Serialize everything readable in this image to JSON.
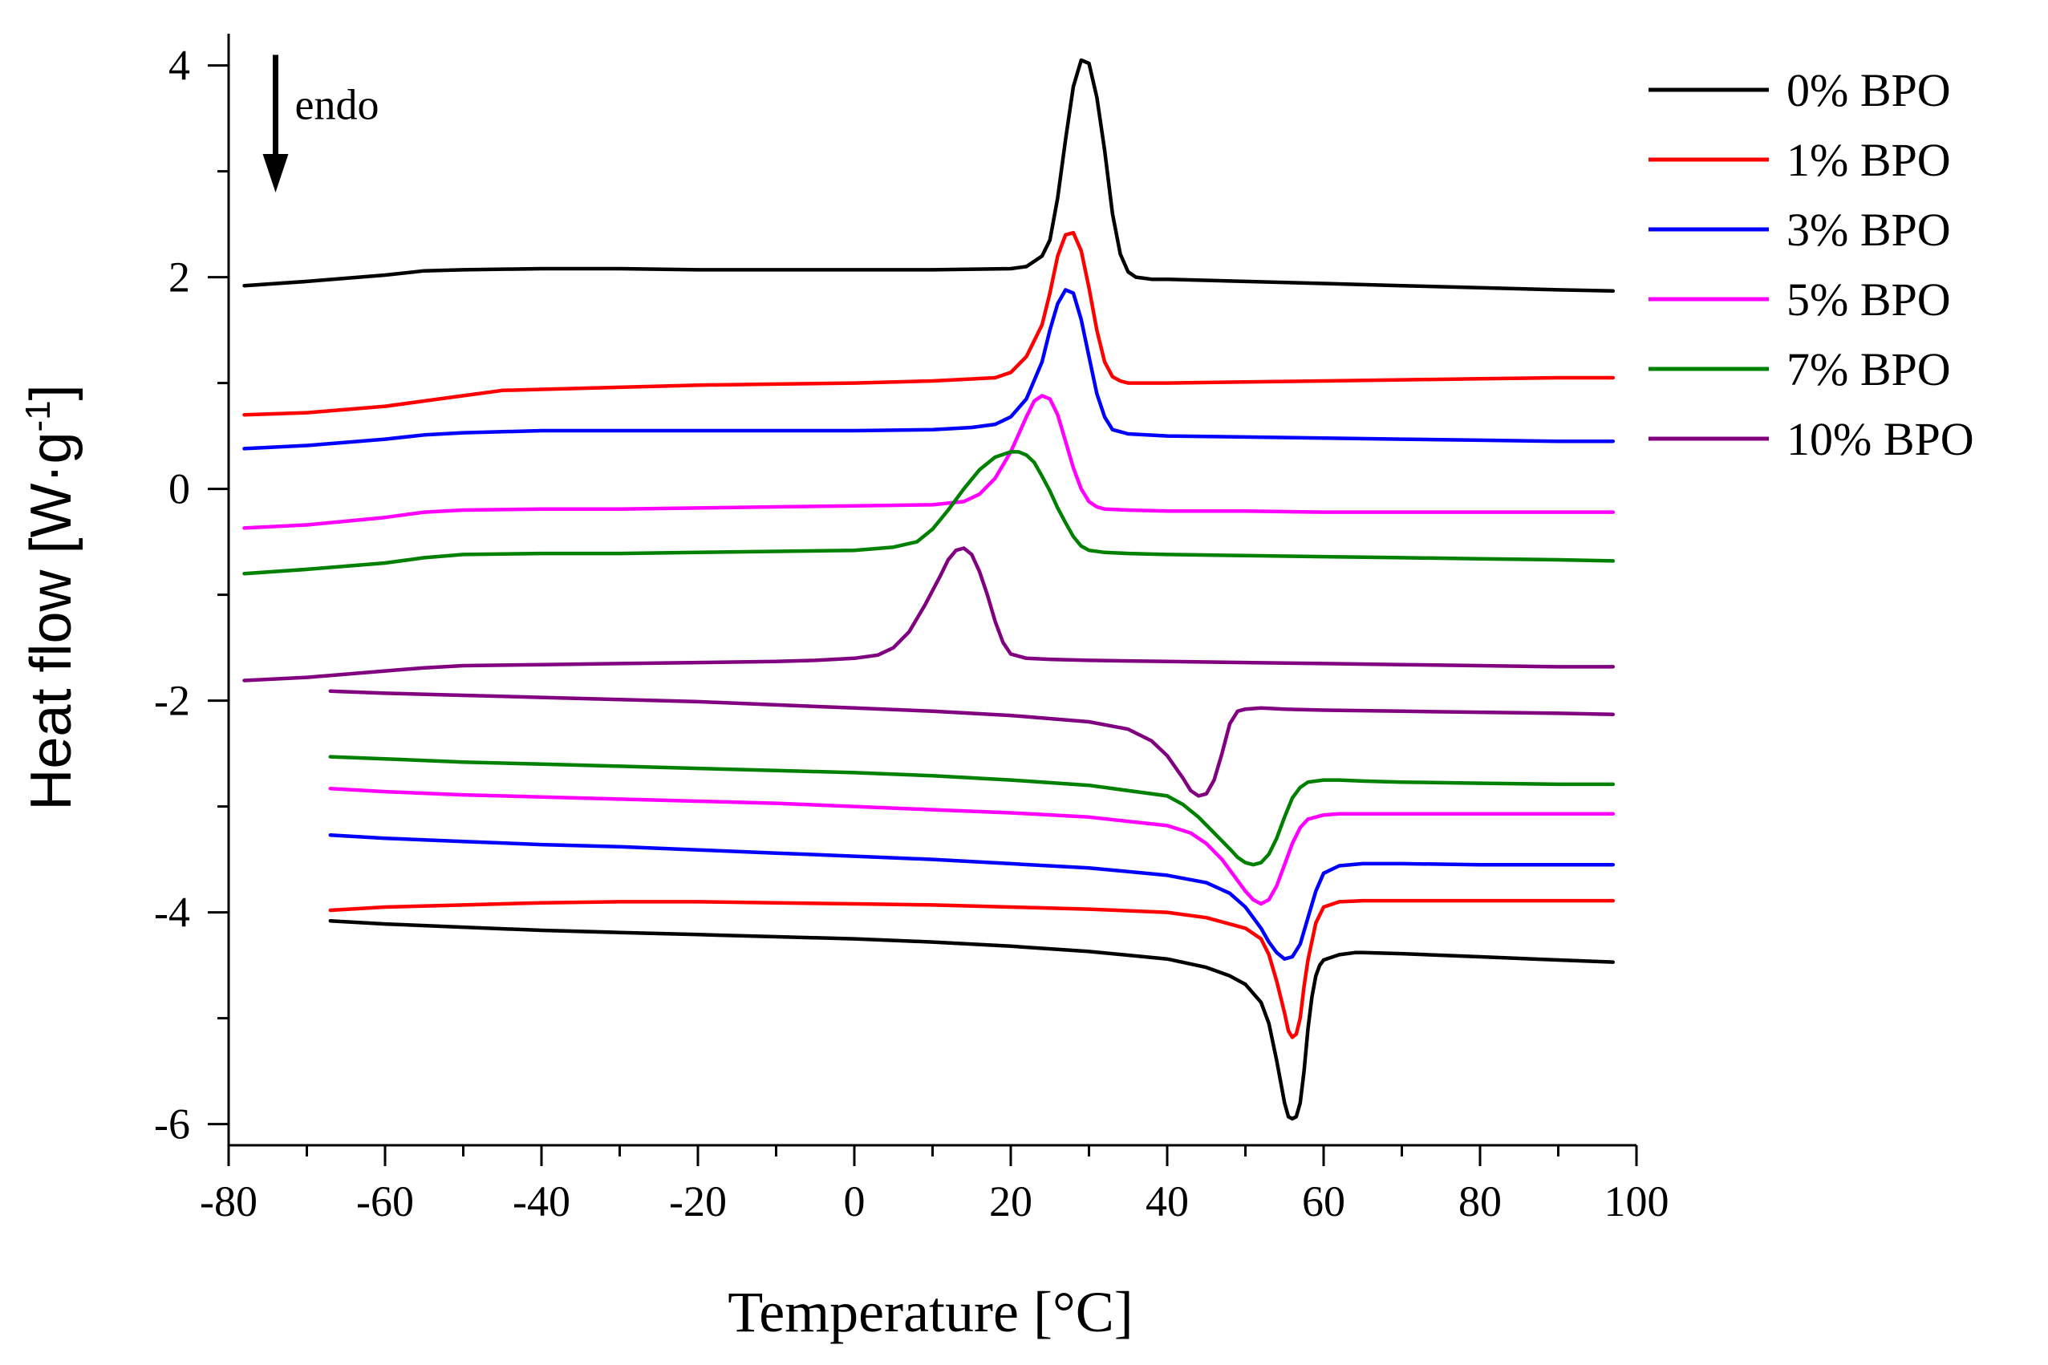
{
  "chart_data": {
    "type": "line",
    "xlabel": "Temperature [°C]",
    "ylabel_main": "Heat flow [W·g",
    "ylabel_sup": "-1",
    "ylabel_close": "]",
    "xlim": [
      -80,
      100
    ],
    "ylim": [
      -6.2,
      4.3
    ],
    "x_ticks": [
      -80,
      -60,
      -40,
      -20,
      0,
      20,
      40,
      60,
      80,
      100
    ],
    "x_tick_labels": [
      "-80",
      "-60",
      "-40",
      "-20",
      "0",
      "20",
      "40",
      "60",
      "80",
      "100"
    ],
    "y_ticks": [
      -6,
      -4,
      -2,
      0,
      2,
      4
    ],
    "y_tick_labels": [
      "-6",
      "-4",
      "-2",
      "0",
      "2",
      "4"
    ],
    "annotation": {
      "text": "endo",
      "x": -74,
      "y_from": 4.1,
      "y_to": 2.8
    },
    "legend_position": "top-right",
    "series": [
      {
        "name": "0% BPO",
        "color": "#000000",
        "segments": [
          {
            "phase": "cooling",
            "x": [
              -78,
              -70,
              -60,
              -55,
              -50,
              -40,
              -30,
              -20,
              -10,
              0,
              10,
              20,
              22,
              24,
              25,
              26,
              27,
              28,
              29,
              30,
              31,
              32,
              33,
              34,
              35,
              36,
              37,
              38,
              40,
              50,
              60,
              70,
              80,
              90,
              97
            ],
            "y": [
              1.92,
              1.96,
              2.02,
              2.06,
              2.07,
              2.08,
              2.08,
              2.07,
              2.07,
              2.07,
              2.07,
              2.08,
              2.1,
              2.2,
              2.35,
              2.75,
              3.3,
              3.8,
              4.05,
              4.02,
              3.7,
              3.2,
              2.6,
              2.22,
              2.05,
              2.0,
              1.99,
              1.98,
              1.98,
              1.96,
              1.94,
              1.92,
              1.9,
              1.88,
              1.87
            ]
          },
          {
            "phase": "heating",
            "x": [
              -67,
              -60,
              -50,
              -40,
              -30,
              -20,
              -10,
              0,
              10,
              20,
              30,
              40,
              45,
              48,
              50,
              52,
              53,
              54,
              55,
              55.5,
              56,
              56.5,
              57,
              57.5,
              58,
              58.5,
              59,
              59.5,
              60,
              62,
              64,
              65,
              70,
              80,
              90,
              97
            ],
            "y": [
              -4.08,
              -4.11,
              -4.14,
              -4.17,
              -4.19,
              -4.21,
              -4.23,
              -4.25,
              -4.28,
              -4.32,
              -4.37,
              -4.44,
              -4.52,
              -4.6,
              -4.68,
              -4.85,
              -5.05,
              -5.4,
              -5.8,
              -5.93,
              -5.95,
              -5.93,
              -5.8,
              -5.5,
              -5.1,
              -4.8,
              -4.6,
              -4.5,
              -4.45,
              -4.4,
              -4.38,
              -4.38,
              -4.39,
              -4.42,
              -4.45,
              -4.47
            ]
          }
        ]
      },
      {
        "name": "1% BPO",
        "color": "#ff0000",
        "segments": [
          {
            "phase": "cooling",
            "x": [
              -78,
              -70,
              -60,
              -50,
              -45,
              -40,
              -30,
              -20,
              -10,
              0,
              10,
              18,
              20,
              22,
              24,
              25,
              26,
              27,
              28,
              29,
              30,
              31,
              32,
              33,
              34,
              35,
              40,
              50,
              60,
              70,
              80,
              90,
              97
            ],
            "y": [
              0.7,
              0.72,
              0.78,
              0.88,
              0.93,
              0.94,
              0.96,
              0.98,
              0.99,
              1.0,
              1.02,
              1.05,
              1.1,
              1.25,
              1.55,
              1.85,
              2.2,
              2.4,
              2.42,
              2.25,
              1.9,
              1.5,
              1.2,
              1.06,
              1.02,
              1.0,
              1.0,
              1.01,
              1.02,
              1.03,
              1.04,
              1.05,
              1.05
            ]
          },
          {
            "phase": "heating",
            "x": [
              -67,
              -60,
              -50,
              -40,
              -30,
              -20,
              -10,
              0,
              10,
              20,
              30,
              40,
              45,
              50,
              52,
              53,
              54,
              55,
              55.5,
              56,
              56.5,
              57,
              57.5,
              58,
              59,
              60,
              62,
              65,
              70,
              80,
              90,
              97
            ],
            "y": [
              -3.98,
              -3.95,
              -3.93,
              -3.91,
              -3.9,
              -3.9,
              -3.91,
              -3.92,
              -3.93,
              -3.95,
              -3.97,
              -4.0,
              -4.05,
              -4.15,
              -4.25,
              -4.4,
              -4.65,
              -4.95,
              -5.12,
              -5.18,
              -5.15,
              -5.0,
              -4.7,
              -4.45,
              -4.1,
              -3.95,
              -3.9,
              -3.89,
              -3.89,
              -3.89,
              -3.89,
              -3.89
            ]
          }
        ]
      },
      {
        "name": "3% BPO",
        "color": "#0000ff",
        "segments": [
          {
            "phase": "cooling",
            "x": [
              -78,
              -70,
              -60,
              -55,
              -50,
              -40,
              -30,
              -20,
              -10,
              0,
              10,
              15,
              18,
              20,
              22,
              24,
              25,
              26,
              27,
              28,
              29,
              30,
              31,
              32,
              33,
              35,
              40,
              50,
              60,
              70,
              80,
              90,
              97
            ],
            "y": [
              0.38,
              0.41,
              0.47,
              0.51,
              0.53,
              0.55,
              0.55,
              0.55,
              0.55,
              0.55,
              0.56,
              0.58,
              0.61,
              0.68,
              0.85,
              1.2,
              1.5,
              1.75,
              1.88,
              1.85,
              1.6,
              1.25,
              0.9,
              0.68,
              0.56,
              0.52,
              0.5,
              0.49,
              0.48,
              0.47,
              0.46,
              0.45,
              0.45
            ]
          },
          {
            "phase": "heating",
            "x": [
              -67,
              -60,
              -50,
              -40,
              -30,
              -20,
              -10,
              0,
              10,
              20,
              30,
              40,
              45,
              48,
              50,
              52,
              53,
              54,
              55,
              56,
              57,
              58,
              59,
              60,
              62,
              65,
              70,
              80,
              90,
              97
            ],
            "y": [
              -3.27,
              -3.3,
              -3.33,
              -3.36,
              -3.38,
              -3.41,
              -3.44,
              -3.47,
              -3.5,
              -3.54,
              -3.58,
              -3.65,
              -3.72,
              -3.82,
              -3.95,
              -4.15,
              -4.28,
              -4.38,
              -4.44,
              -4.42,
              -4.3,
              -4.05,
              -3.8,
              -3.63,
              -3.56,
              -3.54,
              -3.54,
              -3.55,
              -3.55,
              -3.55
            ]
          }
        ]
      },
      {
        "name": "5% BPO",
        "color": "#ff00ff",
        "segments": [
          {
            "phase": "cooling",
            "x": [
              -78,
              -70,
              -60,
              -55,
              -50,
              -40,
              -30,
              -20,
              -10,
              0,
              10,
              14,
              16,
              18,
              20,
              22,
              23,
              24,
              25,
              26,
              27,
              28,
              29,
              30,
              31,
              32,
              35,
              40,
              50,
              60,
              70,
              80,
              90,
              97
            ],
            "y": [
              -0.37,
              -0.34,
              -0.27,
              -0.22,
              -0.2,
              -0.19,
              -0.19,
              -0.18,
              -0.17,
              -0.16,
              -0.15,
              -0.12,
              -0.05,
              0.1,
              0.35,
              0.68,
              0.83,
              0.88,
              0.85,
              0.7,
              0.45,
              0.2,
              0.0,
              -0.12,
              -0.17,
              -0.19,
              -0.2,
              -0.21,
              -0.21,
              -0.22,
              -0.22,
              -0.22,
              -0.22,
              -0.22
            ]
          },
          {
            "phase": "heating",
            "x": [
              -67,
              -60,
              -50,
              -40,
              -30,
              -20,
              -10,
              0,
              10,
              20,
              30,
              40,
              43,
              45,
              47,
              49,
              50,
              51,
              52,
              53,
              54,
              55,
              56,
              57,
              58,
              60,
              62,
              65,
              70,
              80,
              90,
              97
            ],
            "y": [
              -2.83,
              -2.86,
              -2.89,
              -2.91,
              -2.93,
              -2.95,
              -2.97,
              -3.0,
              -3.03,
              -3.06,
              -3.1,
              -3.18,
              -3.25,
              -3.35,
              -3.5,
              -3.7,
              -3.8,
              -3.88,
              -3.92,
              -3.88,
              -3.75,
              -3.55,
              -3.35,
              -3.2,
              -3.12,
              -3.08,
              -3.07,
              -3.07,
              -3.07,
              -3.07,
              -3.07,
              -3.07
            ]
          }
        ]
      },
      {
        "name": "7% BPO",
        "color": "#008000",
        "segments": [
          {
            "phase": "cooling",
            "x": [
              -78,
              -70,
              -60,
              -55,
              -50,
              -40,
              -30,
              -20,
              -10,
              0,
              5,
              8,
              10,
              12,
              14,
              16,
              18,
              20,
              21,
              22,
              23,
              24,
              25,
              26,
              27,
              28,
              29,
              30,
              32,
              35,
              40,
              50,
              60,
              70,
              80,
              90,
              97
            ],
            "y": [
              -0.8,
              -0.76,
              -0.7,
              -0.65,
              -0.62,
              -0.61,
              -0.61,
              -0.6,
              -0.59,
              -0.58,
              -0.55,
              -0.5,
              -0.38,
              -0.2,
              0.0,
              0.18,
              0.3,
              0.35,
              0.35,
              0.32,
              0.25,
              0.12,
              -0.02,
              -0.18,
              -0.32,
              -0.45,
              -0.54,
              -0.58,
              -0.6,
              -0.61,
              -0.62,
              -0.63,
              -0.64,
              -0.65,
              -0.66,
              -0.67,
              -0.68
            ]
          },
          {
            "phase": "heating",
            "x": [
              -67,
              -60,
              -50,
              -40,
              -30,
              -20,
              -10,
              0,
              10,
              20,
              30,
              40,
              42,
              44,
              46,
              48,
              49,
              50,
              51,
              52,
              53,
              54,
              55,
              56,
              57,
              58,
              60,
              62,
              65,
              70,
              80,
              90,
              97
            ],
            "y": [
              -2.53,
              -2.55,
              -2.58,
              -2.6,
              -2.62,
              -2.64,
              -2.66,
              -2.68,
              -2.71,
              -2.75,
              -2.8,
              -2.9,
              -2.98,
              -3.1,
              -3.25,
              -3.4,
              -3.48,
              -3.53,
              -3.55,
              -3.53,
              -3.45,
              -3.3,
              -3.1,
              -2.92,
              -2.82,
              -2.77,
              -2.75,
              -2.75,
              -2.76,
              -2.77,
              -2.78,
              -2.79,
              -2.79
            ]
          }
        ]
      },
      {
        "name": "10% BPO",
        "color": "#800080",
        "segments": [
          {
            "phase": "cooling",
            "x": [
              -78,
              -70,
              -60,
              -55,
              -50,
              -40,
              -30,
              -20,
              -10,
              -5,
              0,
              3,
              5,
              7,
              9,
              11,
              12,
              13,
              14,
              15,
              16,
              17,
              18,
              19,
              20,
              22,
              25,
              30,
              40,
              50,
              60,
              70,
              80,
              90,
              97
            ],
            "y": [
              -1.81,
              -1.78,
              -1.72,
              -1.69,
              -1.67,
              -1.66,
              -1.65,
              -1.64,
              -1.63,
              -1.62,
              -1.6,
              -1.57,
              -1.5,
              -1.35,
              -1.1,
              -0.82,
              -0.67,
              -0.58,
              -0.56,
              -0.62,
              -0.78,
              -1.0,
              -1.25,
              -1.45,
              -1.56,
              -1.6,
              -1.61,
              -1.62,
              -1.63,
              -1.64,
              -1.65,
              -1.66,
              -1.67,
              -1.68,
              -1.68
            ]
          },
          {
            "phase": "heating",
            "x": [
              -67,
              -60,
              -50,
              -40,
              -30,
              -20,
              -10,
              0,
              10,
              20,
              30,
              35,
              38,
              40,
              42,
              43,
              44,
              45,
              46,
              47,
              48,
              49,
              50,
              52,
              55,
              60,
              70,
              80,
              90,
              97
            ],
            "y": [
              -1.91,
              -1.93,
              -1.95,
              -1.97,
              -1.99,
              -2.01,
              -2.04,
              -2.07,
              -2.1,
              -2.14,
              -2.2,
              -2.27,
              -2.38,
              -2.52,
              -2.73,
              -2.85,
              -2.9,
              -2.88,
              -2.75,
              -2.5,
              -2.22,
              -2.1,
              -2.08,
              -2.07,
              -2.08,
              -2.09,
              -2.1,
              -2.11,
              -2.12,
              -2.13
            ]
          }
        ]
      }
    ]
  }
}
